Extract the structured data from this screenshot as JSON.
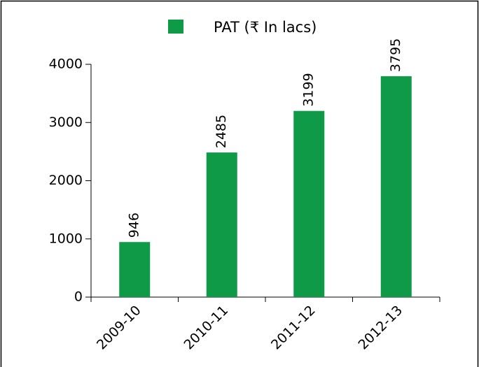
{
  "chart_data": {
    "type": "bar",
    "categories": [
      "2009-10",
      "2010-11",
      "2011-12",
      "2012-13"
    ],
    "series": [
      {
        "name": "PAT (₹ In lacs)",
        "color": "#0f9a48",
        "values": [
          946,
          2485,
          3199,
          3795
        ]
      }
    ],
    "ylim": [
      0,
      4000
    ],
    "yticks": [
      0,
      1000,
      2000,
      3000,
      4000
    ],
    "legend": "top"
  }
}
